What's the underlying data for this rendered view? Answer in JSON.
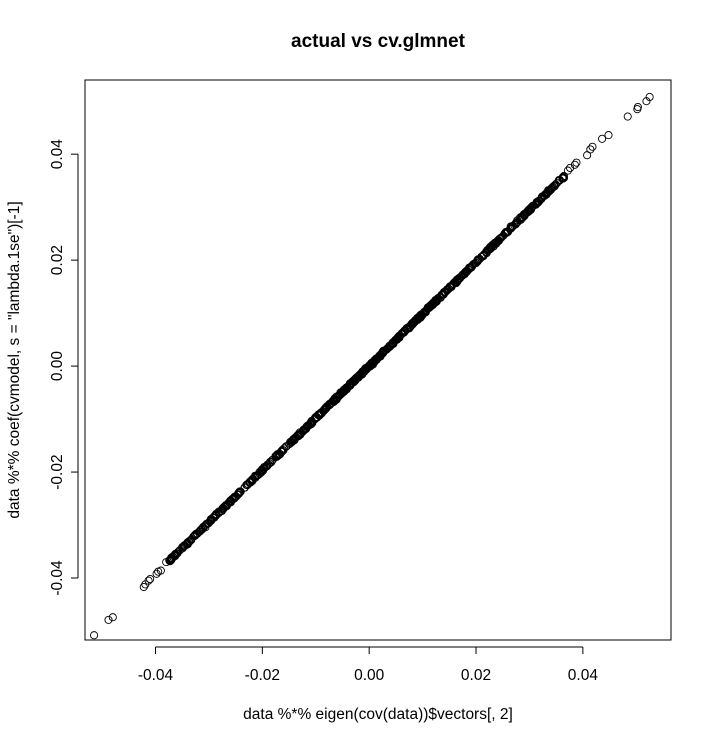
{
  "chart_data": {
    "type": "scatter",
    "title": "actual vs cv.glmnet",
    "xlabel": "data %*% eigen(cov(data))$vectors[, 2]",
    "ylabel": "data %*% coef(cvmodel, s = \"lambda.1se\")[-1]",
    "xlim": [
      -0.0532,
      0.0565
    ],
    "ylim": [
      -0.0517,
      0.054
    ],
    "x_ticks": [
      -0.04,
      -0.02,
      0.0,
      0.02,
      0.04
    ],
    "y_ticks": [
      -0.04,
      -0.02,
      0.0,
      0.02,
      0.04
    ],
    "x_tick_labels": [
      "-0.04",
      "-0.02",
      "0.00",
      "0.02",
      "0.04"
    ],
    "y_tick_labels": [
      "-0.04",
      "-0.02",
      "0.00",
      "0.02",
      "0.04"
    ],
    "marker": "open-circle",
    "grid": false,
    "legend": "none",
    "series": [
      {
        "points": [
          [
            -0.0515,
            -0.0508
          ],
          [
            -0.0488,
            -0.0479
          ],
          [
            -0.048,
            -0.0474
          ],
          [
            -0.0422,
            -0.0417
          ],
          [
            -0.0419,
            -0.0412
          ],
          [
            -0.0413,
            -0.0405
          ],
          [
            -0.041,
            -0.0402
          ],
          [
            -0.0398,
            -0.0392
          ],
          [
            -0.0395,
            -0.0388
          ],
          [
            -0.039,
            -0.0386
          ],
          [
            -0.038,
            -0.037
          ],
          [
            0.0372,
            0.0369
          ],
          [
            0.0376,
            0.0374
          ],
          [
            0.0385,
            0.038
          ],
          [
            0.0388,
            0.0384
          ],
          [
            0.0408,
            0.0398
          ],
          [
            0.0414,
            0.0409
          ],
          [
            0.0418,
            0.0414
          ],
          [
            0.0436,
            0.0429
          ],
          [
            0.0448,
            0.0436
          ],
          [
            0.0484,
            0.0471
          ],
          [
            0.0502,
            0.0485
          ],
          [
            0.0503,
            0.0489
          ],
          [
            0.0519,
            0.05
          ],
          [
            0.0525,
            0.0508
          ]
        ]
      }
    ],
    "dense_band": {
      "x_from": -0.0375,
      "x_to": 0.0365,
      "slope": 0.982,
      "intercept": 0.0,
      "count": 900
    }
  }
}
